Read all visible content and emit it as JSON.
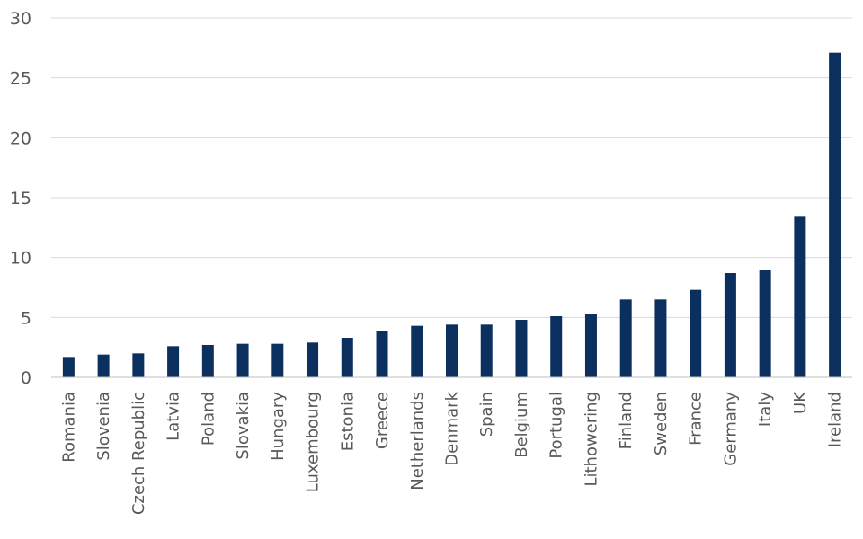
{
  "chart_data": {
    "type": "bar",
    "title": "",
    "xlabel": "",
    "ylabel": "",
    "ylim": [
      0,
      30
    ],
    "yticks": [
      0,
      5,
      10,
      15,
      20,
      25,
      30
    ],
    "grid": true,
    "legend": "none",
    "bar_color": "#0b3060",
    "categories": [
      "Romania",
      "Slovenia",
      "Czech Republic",
      "Latvia",
      "Poland",
      "Slovakia",
      "Hungary",
      "Luxembourg",
      "Estonia",
      "Greece",
      "Netherlands",
      "Denmark",
      "Spain",
      "Belgium",
      "Portugal",
      "Lithowering",
      "Finland",
      "Sweden",
      "France",
      "Germany",
      "Italy",
      "UK",
      "Ireland"
    ],
    "values": [
      1.7,
      1.9,
      2.0,
      2.6,
      2.7,
      2.8,
      2.8,
      2.9,
      3.3,
      3.9,
      4.3,
      4.4,
      4.4,
      4.8,
      5.1,
      5.3,
      6.5,
      6.5,
      7.3,
      8.7,
      9.0,
      13.4,
      27.1
    ]
  }
}
